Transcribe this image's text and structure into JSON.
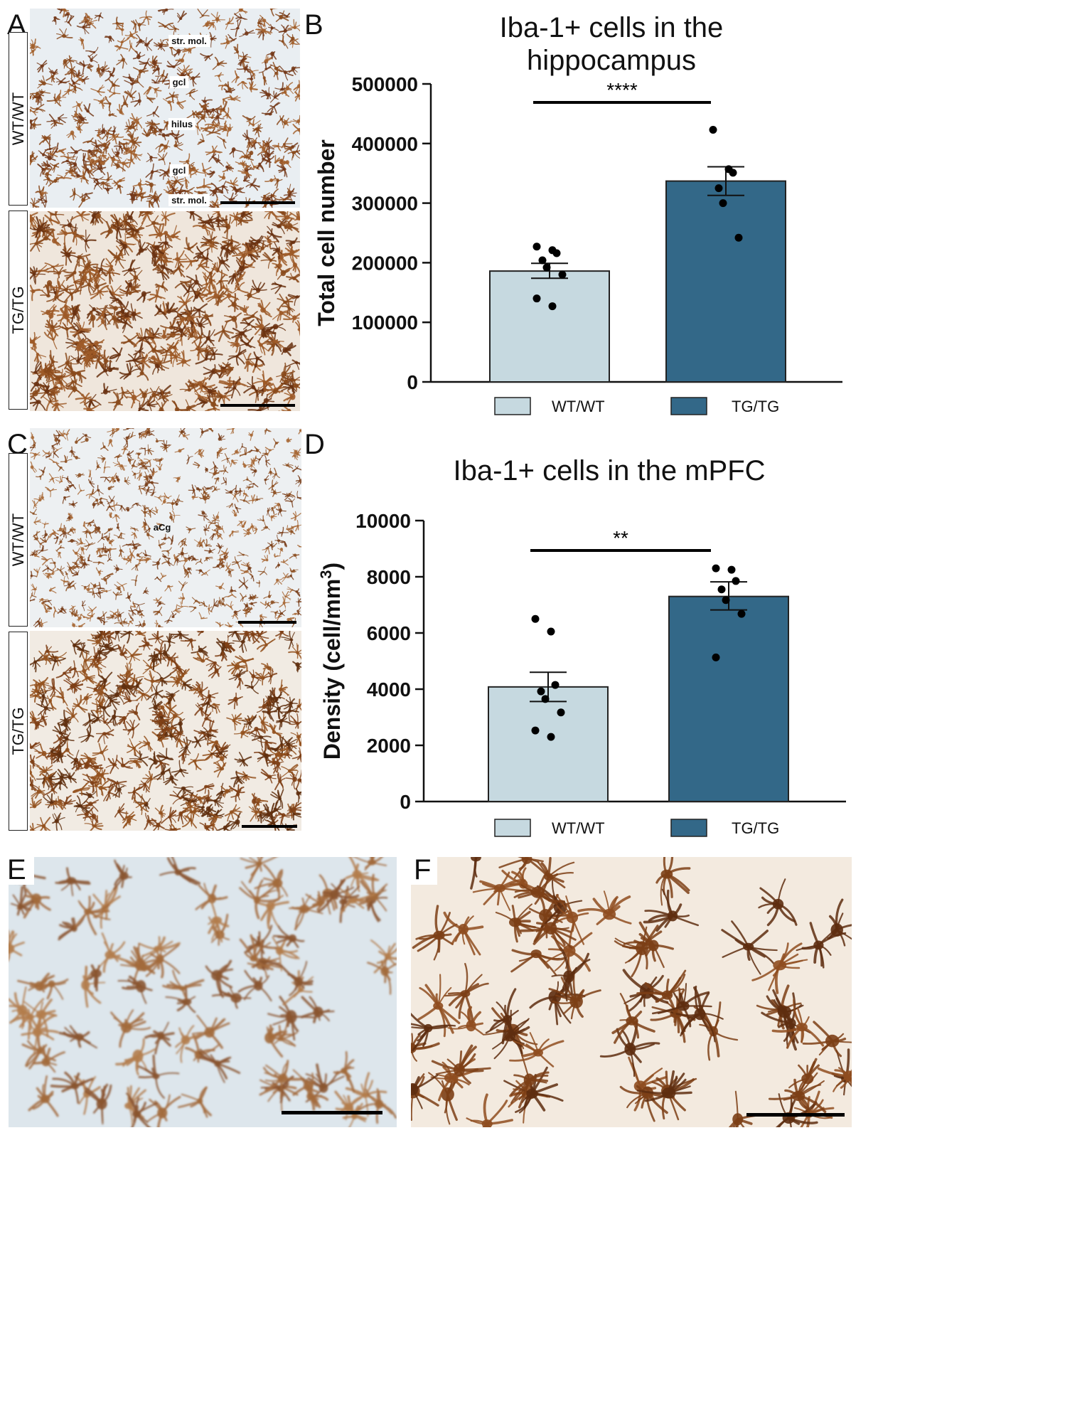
{
  "panels": {
    "A": {
      "letter": "A",
      "top_label": "WT/WT",
      "bottom_label": "TG/TG",
      "regions": [
        "str. mol.",
        "gcl",
        "hilus",
        "gcl",
        "str. mol."
      ]
    },
    "B": {
      "letter": "B"
    },
    "C": {
      "letter": "C",
      "top_label": "WT/WT",
      "bottom_label": "TG/TG",
      "regions": [
        "aCg"
      ]
    },
    "D": {
      "letter": "D"
    },
    "E": {
      "letter": "E"
    },
    "F": {
      "letter": "F"
    }
  },
  "colors": {
    "wt": "#c6d9e0",
    "tg": "#336888",
    "stain": "#8a4a1c",
    "tissue_wt": "#eef3f6",
    "tissue_tg": "#f4ede4"
  },
  "chart_data": [
    {
      "type": "bar",
      "title_lines": [
        "Iba-1+ cells in the",
        "hippocampus"
      ],
      "ylabel": "Total cell number",
      "categories": [
        "WT/WT",
        "TG/TG"
      ],
      "values": [
        186000,
        337000
      ],
      "error": [
        [
          174000,
          199000
        ],
        [
          313000,
          361000
        ]
      ],
      "points": [
        [
          227000,
          221000,
          216000,
          204000,
          192000,
          180000,
          140000,
          127000
        ],
        [
          423000,
          357000,
          351000,
          325000,
          300000,
          242000
        ]
      ],
      "ylim": [
        0,
        500000
      ],
      "yticks": [
        "0",
        "100000",
        "200000",
        "300000",
        "400000",
        "500000"
      ],
      "significance": "****",
      "legend": [
        "WT/WT",
        "TG/TG"
      ],
      "legend_position": "bottom"
    },
    {
      "type": "bar",
      "title_lines": [
        "Iba-1+ cells in the mPFC"
      ],
      "ylabel": "Density  (cell/mm",
      "ylabel_sup": "3",
      "ylabel_end": ")",
      "categories": [
        "WT/WT",
        "TG/TG"
      ],
      "values": [
        4080,
        7300
      ],
      "error": [
        [
          3560,
          4600
        ],
        [
          6820,
          7820
        ]
      ],
      "points": [
        [
          6500,
          6050,
          4150,
          3920,
          3650,
          3170,
          2530,
          2300
        ],
        [
          8300,
          8250,
          7850,
          7550,
          7170,
          6680,
          5130
        ]
      ],
      "ylim": [
        0,
        10000
      ],
      "yticks": [
        "0",
        "2000",
        "4000",
        "6000",
        "8000",
        "10000"
      ],
      "significance": "**",
      "legend": [
        "WT/WT",
        "TG/TG"
      ],
      "legend_position": "bottom"
    }
  ]
}
